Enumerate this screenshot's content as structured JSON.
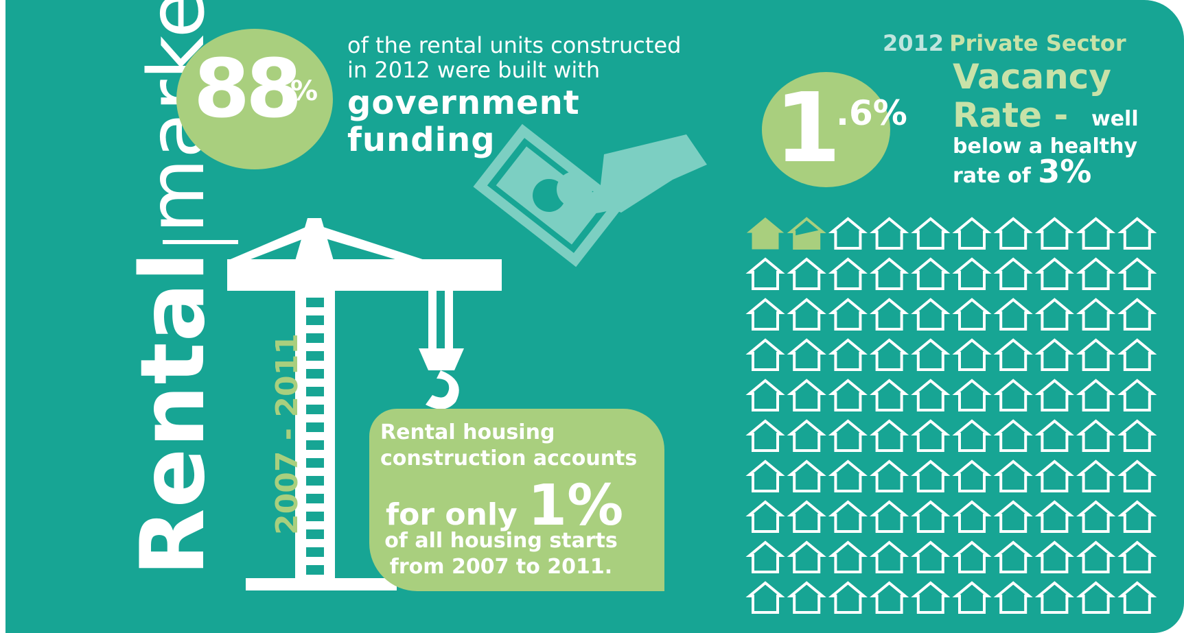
{
  "title": {
    "bold": "Rental",
    "light": "market"
  },
  "government": {
    "percent": "88",
    "percent_sign": "%",
    "line1": "of the rental units constructed",
    "line2": "in 2012 were built with",
    "big1": "government",
    "big2": "funding"
  },
  "vacancy": {
    "value_int": "1",
    "value_dec": ".6%",
    "year": "2012",
    "heading": "Private Sector",
    "big1": "Vacancy",
    "big2": "Rate -",
    "well": "well",
    "below": "below a healthy",
    "rate_of": "rate of",
    "healthy": "3%",
    "houses": {
      "total": 100,
      "filled": 1.6
    }
  },
  "construction": {
    "years": "2007 - 2011",
    "line1": "Rental housing",
    "line2": "construction accounts",
    "for_only": "for only",
    "percent": "1%",
    "line4": "of all housing starts",
    "line5": "from 2007 to 2011."
  },
  "colors": {
    "background": "#17a594",
    "accent": "#a9cf7e",
    "light_accent": "#c8e2a8",
    "money": "#7ccfc2"
  },
  "icons": [
    "money-hand-icon",
    "crane-icon",
    "house-icon"
  ]
}
